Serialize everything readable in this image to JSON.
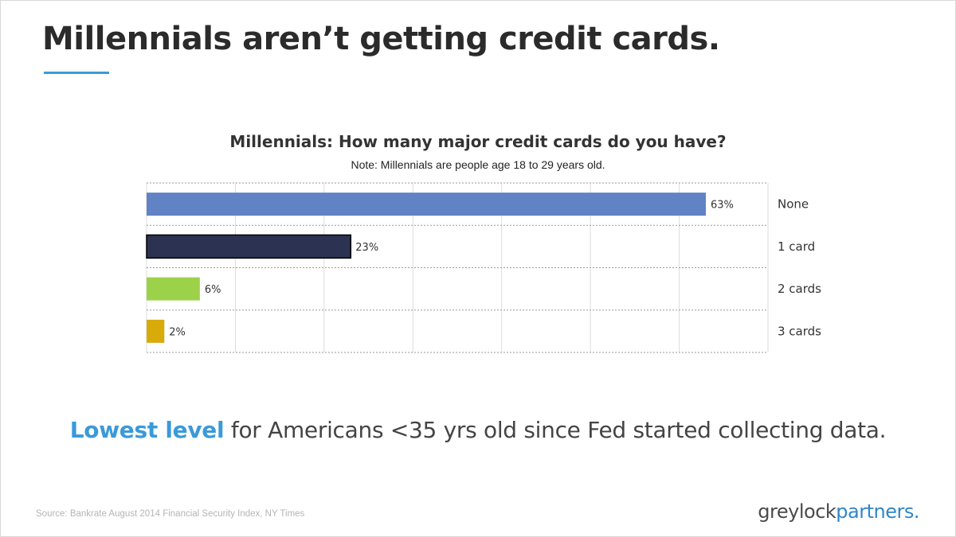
{
  "slide": {
    "title": "Millennials aren’t getting credit cards.",
    "headline_emphasis": "Lowest level",
    "headline_rest": " for Americans <35 yrs old since Fed started collecting data.",
    "source": "Source: Bankrate August 2014 Financial Security Index, NY Times",
    "logo_part1": "greylock",
    "logo_part2": "partners."
  },
  "colors": {
    "accent": "#3a9ad9",
    "logo_accent": "#2f86c9"
  },
  "chart_data": {
    "type": "bar",
    "orientation": "horizontal",
    "title": "Millennials: How many major credit cards do you have?",
    "subtitle": "Note: Millennials are people age 18 to 29 years old.",
    "categories": [
      "None",
      "1 card",
      "2 cards",
      "3 cards"
    ],
    "values": [
      63,
      23,
      6,
      2
    ],
    "data_labels": [
      "63%",
      "23%",
      "6%",
      "2%"
    ],
    "bar_colors": [
      "#6282c6",
      "#2c3352",
      "#9cd24a",
      "#d8aa0a"
    ],
    "xlim": [
      0,
      70
    ],
    "grid": true,
    "category_labels_side": "right"
  }
}
